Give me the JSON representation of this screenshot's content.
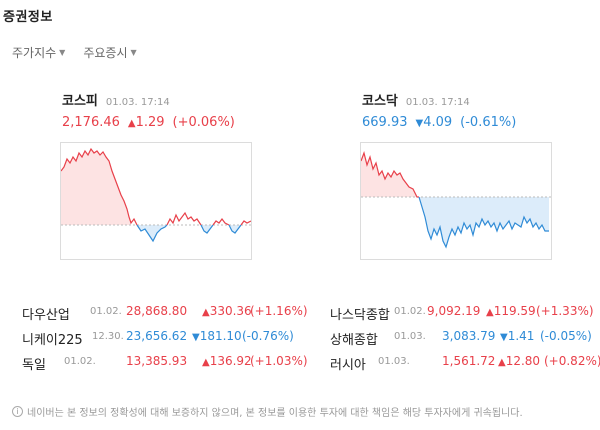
{
  "section_title": "증권정보",
  "tabs": [
    {
      "label": "주가지수"
    },
    {
      "label": "주요증시"
    }
  ],
  "kospi": {
    "name": "코스피",
    "time": "01.03. 17:14",
    "value": "2,176.46",
    "change": "1.29",
    "rate": "(+0.06%)"
  },
  "kosdaq": {
    "name": "코스닥",
    "time": "01.03. 17:14",
    "value": "669.93",
    "change": "4.09",
    "rate": "(-0.61%)"
  },
  "world": [
    {
      "name": "다우산업",
      "date": "01.02.",
      "value": "28,868.80",
      "change": "330.36",
      "rate": "(+1.16%)",
      "dir": "up"
    },
    {
      "name": "나스닥종합",
      "date": "01.02.",
      "value": "9,092.19",
      "change": "119.59",
      "rate": "(+1.33%)",
      "dir": "up"
    },
    {
      "name": "니케이225",
      "date": "12.30.",
      "value": "23,656.62",
      "change": "181.10",
      "rate": "(-0.76%)",
      "dir": "down"
    },
    {
      "name": "상해종합",
      "date": "01.03.",
      "value": "3,083.79",
      "change": "1.41",
      "rate": "(-0.05%)",
      "dir": "down"
    },
    {
      "name": "독일",
      "date": "01.02.",
      "value": "13,385.93",
      "change": "136.92",
      "rate": "(+1.03%)",
      "dir": "up"
    },
    {
      "name": "러시아",
      "date": "01.03.",
      "value": "1,561.72",
      "change": "12.80",
      "rate": "(+0.82%)",
      "dir": "up"
    }
  ],
  "footer": "네이버는 본 정보의 정확성에 대해 보증하지 않으며, 본 정보를 이용한 투자에 대한 책임은 해당 투자자에게 귀속됩니다.",
  "colors": {
    "up": "#e8404a",
    "down": "#2f8bd6",
    "up_fill": "#fde3e3",
    "down_fill": "#dcecfa"
  }
}
